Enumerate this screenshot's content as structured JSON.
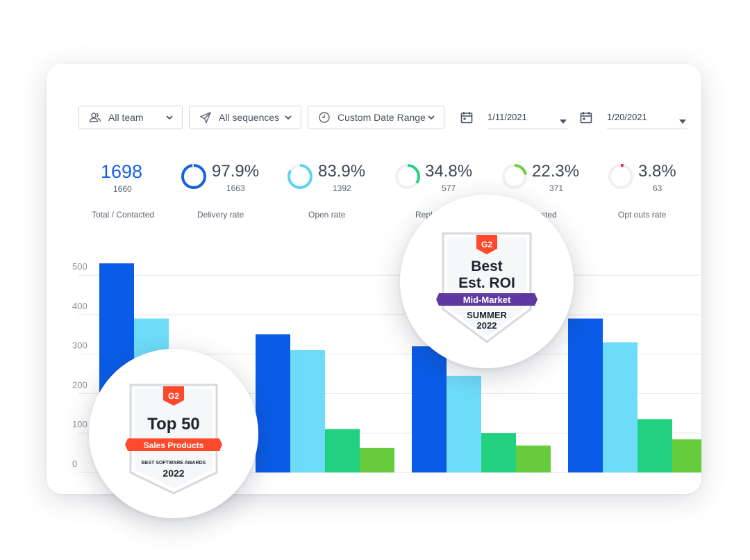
{
  "filters": {
    "team": {
      "label": "All team",
      "icon": "users-icon"
    },
    "sequences": {
      "label": "All sequences",
      "icon": "send-icon"
    },
    "date_range": {
      "label": "Custom Date Range",
      "icon": "clock-icon"
    }
  },
  "dates": {
    "start": {
      "value": "1/11/2021",
      "icon": "calendar-icon"
    },
    "end": {
      "value": "1/20/2021",
      "icon": "calendar-icon"
    }
  },
  "metrics": [
    {
      "big": "1698",
      "small": "1660",
      "label": "Total / Contacted",
      "ring": null
    },
    {
      "big": "97.9%",
      "small": "1663",
      "label": "Delivery rate",
      "ring": 0.979,
      "color": "#1660e8"
    },
    {
      "big": "83.9%",
      "small": "1392",
      "label": "Open rate",
      "ring": 0.839,
      "color": "#5fd3f5"
    },
    {
      "big": "34.8%",
      "small": "577",
      "label": "Repl",
      "ring": 0.348,
      "color": "#27d17f"
    },
    {
      "big": "22.3%",
      "small": "371",
      "label": "sted",
      "ring": 0.223,
      "color": "#6ccf3c"
    },
    {
      "big": "3.8%",
      "small": "63",
      "label": "Opt outs rate",
      "ring": 0.038,
      "color": "#e8213b"
    }
  ],
  "chart_data": {
    "type": "bar",
    "categories": [
      "",
      "",
      "",
      ""
    ],
    "series": [
      {
        "values": [
          530,
          350,
          320,
          390
        ],
        "color": "#0a5ce8"
      },
      {
        "values": [
          390,
          310,
          245,
          330
        ],
        "color": "#6edcf9"
      },
      {
        "values": [
          null,
          110,
          100,
          135
        ],
        "color": "#22d17f"
      },
      {
        "values": [
          null,
          62,
          68,
          84
        ],
        "color": "#66cc3c"
      }
    ],
    "yticks": [
      0,
      100,
      200,
      300,
      400,
      500
    ],
    "ylim": [
      0,
      560
    ],
    "grid": true
  },
  "badges": {
    "top50": {
      "brand": "G2",
      "headline": "Top 50",
      "ribbon": "Sales Products",
      "subtitle": "BEST SOFTWARE AWARDS",
      "year": "2022",
      "accent": "#ff492c"
    },
    "roi": {
      "brand": "G2",
      "headline1": "Best",
      "headline2": "Est. ROI",
      "ribbon": "Mid-Market",
      "season": "SUMMER",
      "year": "2022",
      "accent": "#5e3aa0"
    }
  }
}
